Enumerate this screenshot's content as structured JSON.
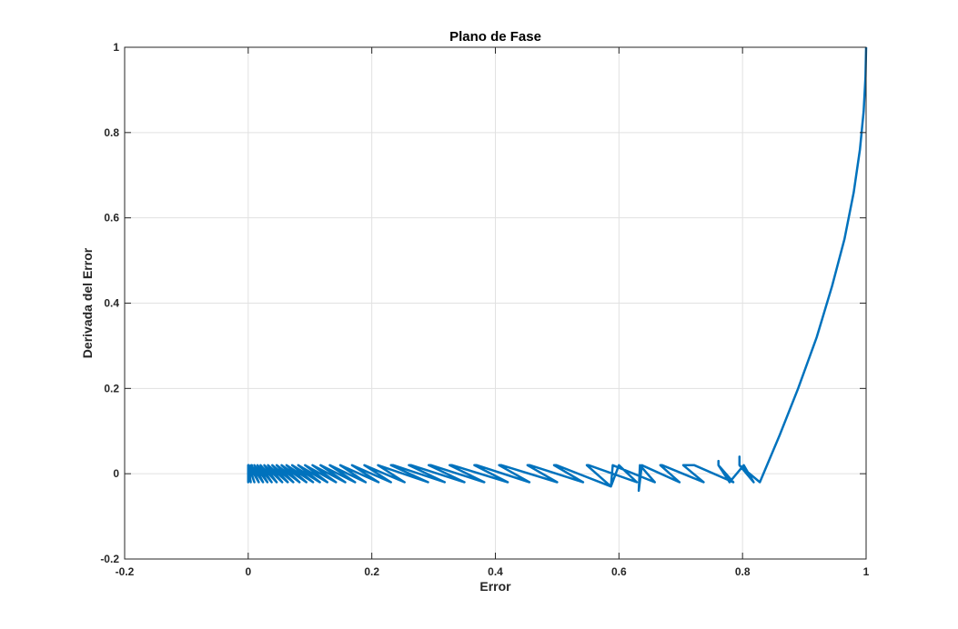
{
  "chart_data": {
    "type": "line",
    "title": "Plano de Fase",
    "xlabel": "Error",
    "ylabel": "Derivada del Error",
    "xlim": [
      -0.2,
      1
    ],
    "ylim": [
      -0.2,
      1
    ],
    "xticks": [
      "-0.2",
      "0",
      "0.2",
      "0.4",
      "0.6",
      "0.8",
      "1"
    ],
    "yticks": [
      "-0.2",
      "0",
      "0.2",
      "0.4",
      "0.6",
      "0.8",
      "1"
    ],
    "grid": true,
    "line_color": "#0072BD",
    "series": [
      {
        "x": [
          1.0,
          0.999,
          0.996,
          0.99,
          0.98,
          0.965,
          0.945,
          0.92,
          0.89,
          0.86,
          0.828,
          0.795,
          0.795,
          0.795,
          0.818,
          0.802,
          0.779,
          0.761,
          0.761,
          0.761,
          0.785,
          0.722,
          0.704,
          0.704,
          0.737,
          0.67,
          0.67,
          0.667,
          0.698,
          0.637,
          0.632,
          0.634,
          0.658,
          0.59,
          0.587,
          0.6,
          0.6,
          0.629,
          0.551,
          0.548,
          0.548,
          0.587,
          0.499,
          0.495,
          0.495,
          0.542,
          0.456,
          0.452,
          0.452,
          0.5,
          0.41,
          0.406,
          0.406,
          0.455,
          0.37,
          0.366,
          0.366,
          0.42,
          0.33,
          0.326,
          0.326,
          0.382,
          0.296,
          0.292,
          0.292,
          0.35,
          0.264,
          0.26,
          0.26,
          0.318,
          0.235,
          0.231,
          0.231,
          0.291,
          0.21,
          0.21,
          0.253,
          0.188,
          0.188,
          0.231,
          0.168,
          0.168,
          0.211,
          0.149,
          0.149,
          0.19,
          0.132,
          0.132,
          0.173,
          0.117,
          0.117,
          0.157,
          0.104,
          0.104,
          0.142,
          0.092,
          0.092,
          0.128,
          0.081,
          0.081,
          0.116,
          0.071,
          0.071,
          0.105,
          0.062,
          0.062,
          0.094,
          0.054,
          0.054,
          0.083,
          0.046,
          0.046,
          0.073,
          0.039,
          0.039,
          0.064,
          0.032,
          0.032,
          0.055,
          0.026,
          0.026,
          0.046,
          0.02,
          0.02,
          0.038,
          0.015,
          0.015,
          0.031,
          0.01,
          0.01,
          0.024,
          0.005,
          0.005,
          0.017,
          0.001,
          0.001,
          0.01,
          0.0,
          0.0,
          0.006,
          0.0,
          0.0,
          0.004,
          0.0
        ],
        "y": [
          1.0,
          0.93,
          0.85,
          0.76,
          0.66,
          0.55,
          0.44,
          0.32,
          0.2,
          0.09,
          -0.02,
          0.02,
          0.04,
          0.02,
          -0.02,
          0.02,
          -0.02,
          0.02,
          0.03,
          0.02,
          -0.02,
          0.02,
          0.02,
          0.02,
          -0.02,
          0.02,
          0.02,
          0.02,
          -0.02,
          0.02,
          -0.04,
          0.02,
          -0.02,
          0.02,
          -0.03,
          0.02,
          0.02,
          -0.02,
          0.02,
          0.02,
          0.02,
          -0.03,
          0.02,
          0.02,
          0.02,
          -0.02,
          0.02,
          0.02,
          0.02,
          -0.02,
          0.02,
          0.02,
          0.02,
          -0.02,
          0.02,
          0.02,
          0.02,
          -0.02,
          0.02,
          0.02,
          0.02,
          -0.02,
          0.02,
          0.02,
          0.02,
          -0.02,
          0.02,
          0.02,
          0.02,
          -0.02,
          0.02,
          0.02,
          0.02,
          -0.02,
          0.02,
          0.02,
          -0.02,
          0.02,
          0.02,
          -0.02,
          0.02,
          0.02,
          -0.02,
          0.02,
          0.02,
          -0.02,
          0.02,
          0.02,
          -0.02,
          0.02,
          0.02,
          -0.02,
          0.02,
          0.02,
          -0.02,
          0.02,
          0.02,
          -0.02,
          0.02,
          0.02,
          -0.02,
          0.02,
          0.02,
          -0.02,
          0.02,
          0.02,
          -0.02,
          0.02,
          0.02,
          -0.02,
          0.02,
          0.02,
          -0.02,
          0.02,
          0.02,
          -0.02,
          0.02,
          0.02,
          -0.02,
          0.02,
          0.02,
          -0.02,
          0.02,
          0.02,
          -0.02,
          0.02,
          0.02,
          -0.02,
          0.02,
          0.02,
          -0.02,
          0.02,
          0.02,
          -0.02,
          0.02,
          0.02,
          -0.02,
          0.02,
          -0.02,
          0.02,
          -0.02,
          0.02,
          -0.02,
          0.0
        ]
      }
    ]
  }
}
